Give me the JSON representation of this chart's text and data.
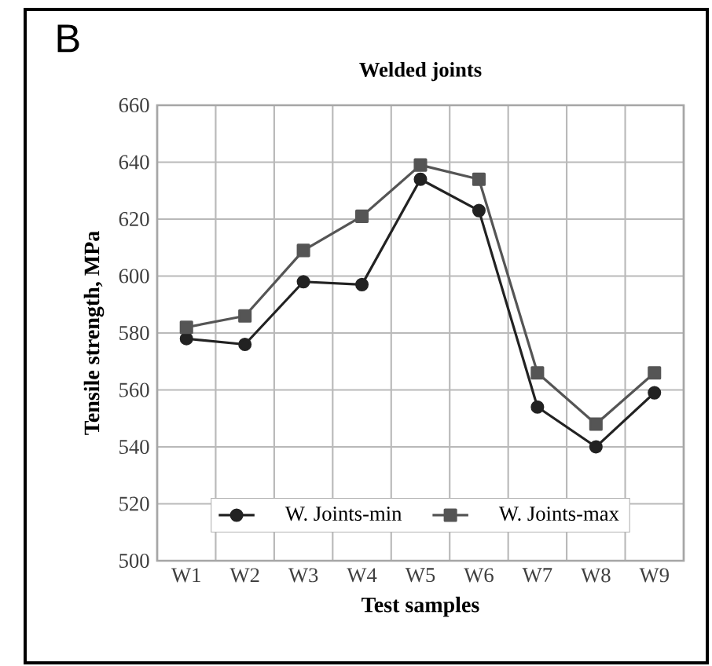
{
  "chart_data": {
    "type": "line",
    "title": "Welded joints",
    "xlabel": "Test samples",
    "ylabel": "Tensile strength, MPa",
    "annotations": [
      "B"
    ],
    "categories": [
      "W1",
      "W2",
      "W3",
      "W4",
      "W5",
      "W6",
      "W7",
      "W8",
      "W9"
    ],
    "series": [
      {
        "name": "W. Joints-min",
        "color": "#222222",
        "marker": "circle",
        "values": [
          578,
          576,
          598,
          597,
          634,
          623,
          554,
          540,
          559
        ]
      },
      {
        "name": "W. Joints-max",
        "color": "#555555",
        "marker": "square",
        "values": [
          582,
          586,
          609,
          621,
          639,
          634,
          566,
          548,
          566
        ]
      }
    ],
    "ylim": [
      500,
      660
    ],
    "yticks": [
      500,
      520,
      540,
      560,
      580,
      600,
      620,
      640,
      660
    ],
    "grid": true,
    "legend": "bottom"
  }
}
